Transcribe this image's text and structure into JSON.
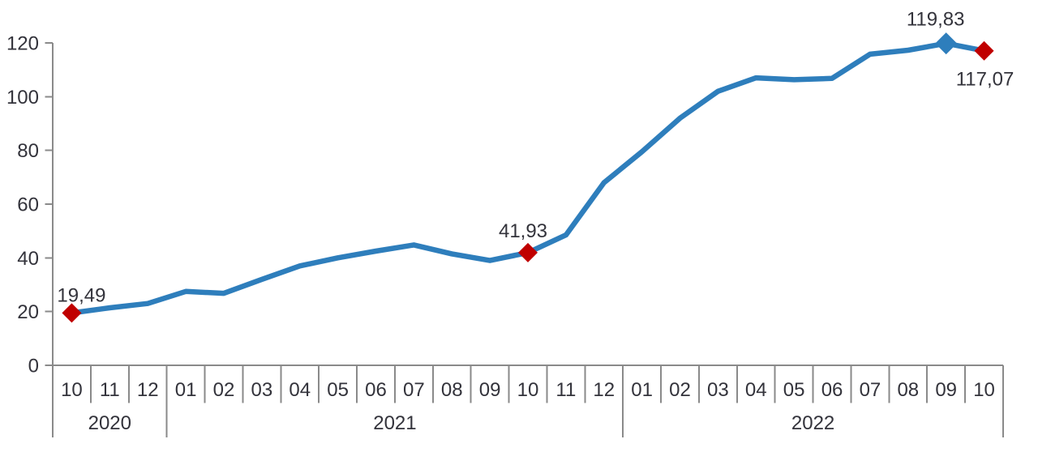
{
  "chart_data": {
    "type": "line",
    "number_format": "decimal-comma",
    "y_axis": {
      "min": 0,
      "max": 120,
      "tick_labels": [
        "0",
        "20",
        "40",
        "60",
        "80",
        "100",
        "120"
      ]
    },
    "x_axis": {
      "month_labels": [
        "10",
        "11",
        "12",
        "01",
        "02",
        "03",
        "04",
        "05",
        "06",
        "07",
        "08",
        "09",
        "10",
        "11",
        "12",
        "01",
        "02",
        "03",
        "04",
        "05",
        "06",
        "07",
        "08",
        "09",
        "10"
      ],
      "year_groups": [
        {
          "label": "2020",
          "months": 3
        },
        {
          "label": "2021",
          "months": 12
        },
        {
          "label": "2022",
          "months": 10
        }
      ]
    },
    "series": [
      {
        "name": "annual-change-line",
        "values": [
          19.49,
          21.4,
          23.0,
          27.5,
          26.8,
          32.0,
          37.0,
          40.0,
          42.5,
          44.8,
          41.5,
          39.0,
          41.93,
          48.5,
          68.0,
          79.5,
          92.0,
          102.0,
          107.0,
          106.3,
          106.8,
          115.8,
          117.3,
          119.83,
          117.07
        ]
      }
    ],
    "labeled_points": [
      {
        "point_index": 0,
        "month": "10",
        "year": "2020",
        "label": "19,49",
        "value": 19.49,
        "marker": "red-diamond",
        "label_position": "above"
      },
      {
        "point_index": 12,
        "month": "10",
        "year": "2021",
        "label": "41,93",
        "value": 41.93,
        "marker": "red-diamond",
        "label_position": "above"
      },
      {
        "point_index": 23,
        "month": "09",
        "year": "2022",
        "label": "119,83",
        "value": 119.83,
        "marker": "blue-diamond",
        "label_position": "above"
      },
      {
        "point_index": 24,
        "month": "10",
        "year": "2022",
        "label": "117,07",
        "value": 117.07,
        "marker": "red-diamond",
        "label_position": "below"
      }
    ],
    "colors": {
      "line": "#2e7ebc",
      "highlight_marker": "#c00000",
      "axis": "#8a8a8a",
      "text": "#33333b",
      "background": "#ffffff"
    },
    "grid": "off",
    "legend": "none"
  }
}
